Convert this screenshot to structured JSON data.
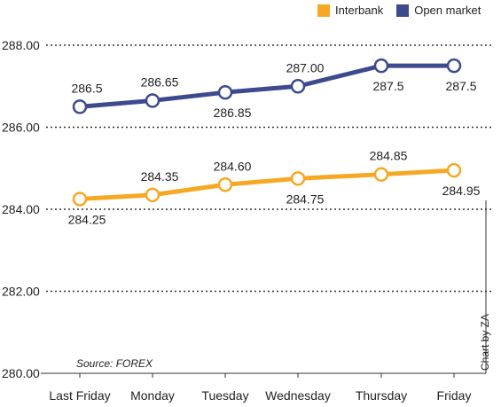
{
  "chart_data": {
    "type": "line",
    "categories": [
      "Last Friday",
      "Monday",
      "Tuesday",
      "Wednesday",
      "Thursday",
      "Friday"
    ],
    "series": [
      {
        "name": "Interbank",
        "color": "#f7a823",
        "values": [
          284.25,
          284.35,
          284.6,
          284.75,
          284.85,
          284.95
        ],
        "labels": [
          "284.25",
          "284.35",
          "284.60",
          "284.75",
          "284.85",
          "284.95"
        ],
        "label_positions": [
          "below",
          "above",
          "above",
          "below",
          "above",
          "below"
        ]
      },
      {
        "name": "Open market",
        "color": "#3d4a8e",
        "values": [
          286.5,
          286.65,
          286.85,
          287.0,
          287.5,
          287.5
        ],
        "labels": [
          "286.5",
          "286.65",
          "286.85",
          "287.00",
          "287.5",
          "287.5"
        ],
        "label_positions": [
          "above",
          "above",
          "below",
          "above",
          "below",
          "below"
        ]
      }
    ],
    "y_ticks": [
      "288.00",
      "286.00",
      "284.00",
      "282.00",
      "280.00"
    ],
    "ylim": [
      280,
      288
    ],
    "grid": "horizontal dotted",
    "legend_position": "top-right"
  },
  "legend": {
    "interbank": "Interbank",
    "open_market": "Open market"
  },
  "source": "Source: FOREX",
  "credit": "Chart by ZA"
}
